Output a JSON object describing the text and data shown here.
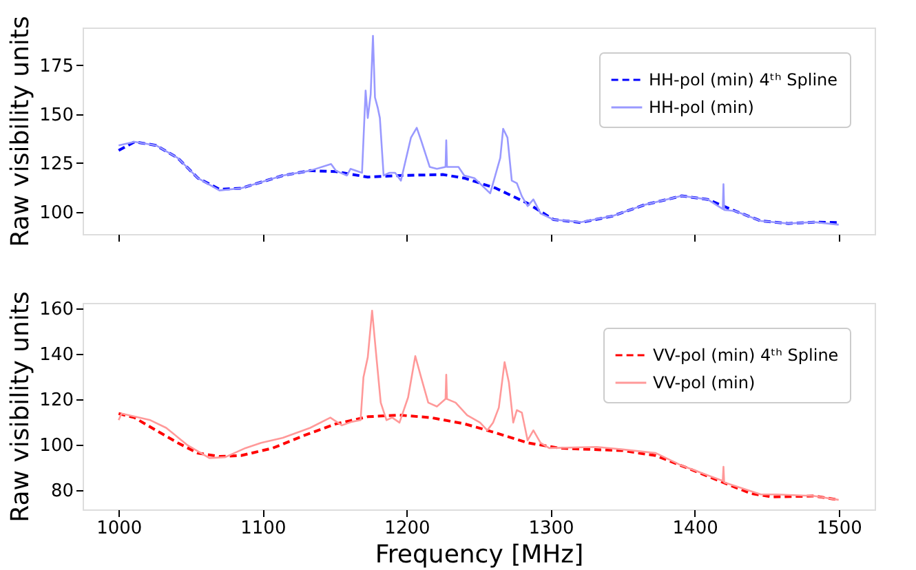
{
  "chart_data": [
    {
      "type": "line",
      "ylabel": "Raw visibility units",
      "xlim": [
        975,
        1525
      ],
      "xticks": [
        1000,
        1100,
        1200,
        1300,
        1400,
        1500
      ],
      "ylim": [
        88.7,
        194.2
      ],
      "yticks": [
        100,
        125,
        150,
        175
      ],
      "grid": false,
      "legend": "top right",
      "tick_labels": "y",
      "series": [
        {
          "name": "HH-pol (min) 4ᵗʰ Spline",
          "color": "#0000ff",
          "line_style": "dashed",
          "x": [
            1000,
            1011,
            1026,
            1041,
            1055,
            1070,
            1085,
            1114,
            1133,
            1151,
            1173,
            1195,
            1225,
            1240,
            1262,
            1284,
            1302,
            1321,
            1343,
            1365,
            1391,
            1409,
            1428,
            1446,
            1465,
            1483,
            1500
          ],
          "values": [
            131.4,
            135.8,
            134,
            127.6,
            117.3,
            111.6,
            112.1,
            118.6,
            121.1,
            120.6,
            117.8,
            118.6,
            119.1,
            117.3,
            112.1,
            104.4,
            96.1,
            94.6,
            97.9,
            103.6,
            108.2,
            106.4,
            100.5,
            95.4,
            94.1,
            94.8,
            94.6
          ]
        },
        {
          "name": "HH-pol (min)",
          "color": "#9999ff",
          "line_style": "solid",
          "x": [
            1000,
            1011,
            1026,
            1041,
            1055,
            1070,
            1085,
            1114,
            1133,
            1147.5,
            1151,
            1158.5,
            1161,
            1169,
            1171.5,
            1173,
            1175,
            1176.6,
            1178,
            1180,
            1181.4,
            1184,
            1188,
            1192,
            1196,
            1203,
            1207,
            1210,
            1216,
            1221,
            1227,
            1227.5,
            1228,
            1236,
            1240,
            1247,
            1258,
            1265,
            1267,
            1270,
            1273,
            1276.5,
            1280,
            1284,
            1288,
            1293,
            1302,
            1321,
            1343,
            1365,
            1391,
            1409,
            1419.5,
            1420,
            1420.5,
            1428,
            1446,
            1465,
            1483,
            1500
          ],
          "values": [
            134,
            135.8,
            134,
            127.6,
            117.3,
            111,
            112.1,
            118.6,
            121.1,
            124.5,
            121,
            118.6,
            122,
            120,
            162,
            148,
            160,
            190,
            158.5,
            153,
            148,
            118.6,
            120,
            120,
            116,
            138,
            143,
            136.6,
            123,
            122,
            123,
            136.6,
            123,
            123,
            118.6,
            117.3,
            109.5,
            127.6,
            142.5,
            138,
            116,
            114.7,
            108,
            103,
            106.4,
            99.2,
            96.1,
            94.8,
            97.9,
            103.6,
            108.2,
            106.4,
            101.5,
            114.2,
            101,
            100.5,
            95.4,
            94.1,
            94.8,
            93.5
          ]
        }
      ]
    },
    {
      "type": "line",
      "xlabel": "Frequency [MHz]",
      "ylabel": "Raw visibility units",
      "xlim": [
        975,
        1525
      ],
      "xticks": [
        1000,
        1100,
        1200,
        1300,
        1400,
        1500
      ],
      "ylim": [
        71.4,
        162.3
      ],
      "yticks": [
        80,
        100,
        120,
        140,
        160
      ],
      "grid": false,
      "legend": "top right",
      "series": [
        {
          "name": "VV-pol (min) 4ᵗʰ Spline",
          "color": "#ff0000",
          "line_style": "dashed",
          "x": [
            1000,
            1011,
            1026,
            1041,
            1055,
            1070,
            1085,
            1107,
            1129,
            1151,
            1173,
            1195,
            1217,
            1240,
            1262,
            1284,
            1306,
            1328,
            1350,
            1373,
            1395,
            1417,
            1439,
            1454,
            1483,
            1500
          ],
          "values": [
            113.6,
            111.8,
            106.2,
            100.7,
            96.2,
            94.7,
            95.1,
            98.4,
            104,
            109.1,
            112.2,
            112.9,
            111.8,
            109.1,
            105.1,
            100.7,
            98.4,
            97.8,
            97.3,
            95.1,
            89.6,
            84,
            78.4,
            76.9,
            77.3,
            75.6
          ]
        },
        {
          "name": "VV-pol (min)",
          "color": "#ff9999",
          "line_style": "solid",
          "x": [
            1000,
            1002,
            1022,
            1033,
            1048,
            1063,
            1074,
            1088,
            1099,
            1114,
            1133,
            1147,
            1155,
            1162,
            1168,
            1170,
            1173,
            1176,
            1179,
            1182,
            1186,
            1190,
            1195,
            1201,
            1206,
            1210,
            1215,
            1221,
            1227,
            1227.5,
            1228,
            1234,
            1242,
            1251,
            1256,
            1260,
            1264,
            1268,
            1271,
            1274,
            1276.5,
            1280,
            1284,
            1288,
            1293,
            1299,
            1332,
            1350,
            1373,
            1391,
            1419.5,
            1420,
            1420.5,
            1446,
            1457,
            1483,
            1500
          ],
          "values": [
            110.7,
            113.6,
            110.7,
            107.3,
            99.6,
            94,
            94.4,
            98.4,
            100.7,
            102.9,
            107.3,
            111.8,
            108.4,
            110,
            110.7,
            129.6,
            138.4,
            158.9,
            138.4,
            118.4,
            110.7,
            111.8,
            109.6,
            120.7,
            138.9,
            129.6,
            118.4,
            116.7,
            120,
            130.7,
            120,
            118.4,
            112.9,
            109.6,
            106.2,
            109.6,
            116.2,
            136.2,
            127.3,
            109.6,
            115.1,
            114,
            101.8,
            106.2,
            100.7,
            98.4,
            98.9,
            97.8,
            96.2,
            90.7,
            84,
            90.2,
            83.3,
            78,
            78,
            77.3,
            75.6
          ]
        }
      ]
    }
  ]
}
